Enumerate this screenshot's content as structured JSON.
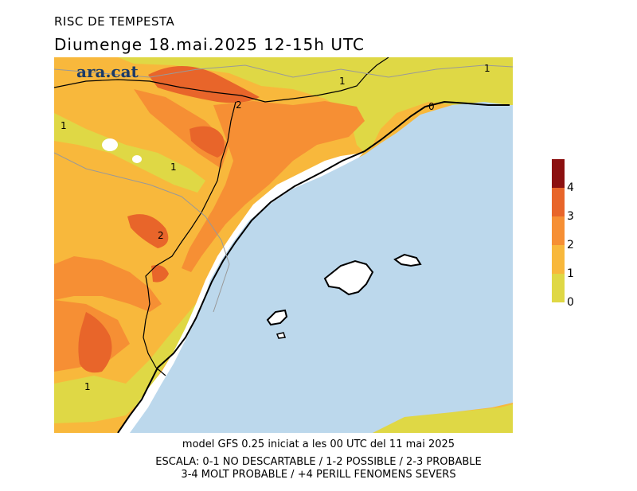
{
  "header": {
    "title": "RISC DE TEMPESTA",
    "subtitle": "Diumenge  18.mai.2025  12-15h UTC"
  },
  "logo": {
    "text": "ara.cat"
  },
  "map": {
    "contour_labels": [
      "1",
      "2",
      "1",
      "1",
      "2",
      "1",
      "1",
      "0"
    ],
    "colors": {
      "level_0_1": "#dfd845",
      "level_1_2": "#f8b83c",
      "level_2_3": "#f68f34",
      "level_3_4": "#e8652a",
      "level_4": "#8c1010",
      "sea": "#bcd8ec",
      "outside": "#ffffff"
    }
  },
  "legend": {
    "labels": [
      "4",
      "3",
      "2",
      "1",
      "0"
    ],
    "colors": [
      "#8c1010",
      "#e8652a",
      "#f68f34",
      "#f8b83c",
      "#dfd845"
    ]
  },
  "footer": {
    "line1": "model GFS 0.25 iniciat a les 00 UTC del 11 mai 2025",
    "line2": "ESCALA: 0-1 NO DESCARTABLE / 1-2 POSSIBLE / 2-3 PROBABLE",
    "line3": "3-4 MOLT PROBABLE / +4 PERILL FENOMENS SEVERS"
  }
}
